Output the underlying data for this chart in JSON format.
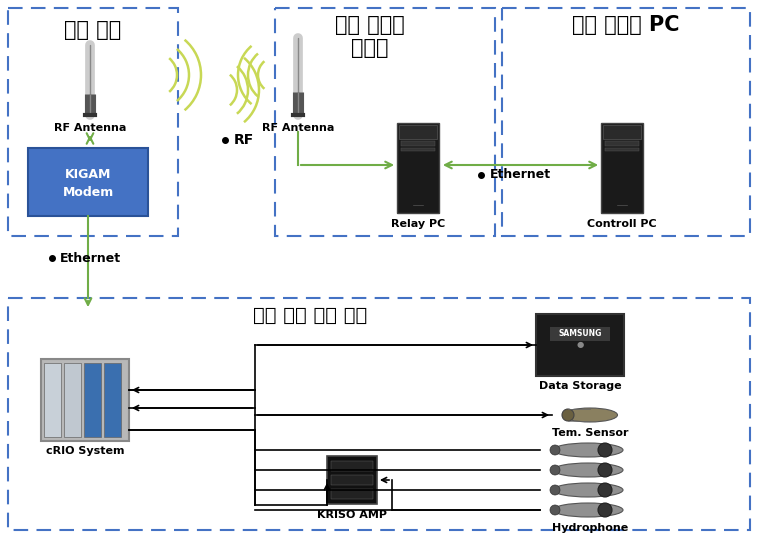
{
  "bg_color": "#ffffff",
  "dash_color": "#4472c4",
  "arrow_green": "#70ad47",
  "modem_fill": "#4472c4",
  "modem_edge": "#2a5298",
  "pc_fill": "#111111",
  "pc_edge": "#333333",
  "wifi_color": "#c8d855",
  "labels": {
    "box1_title": "수상 부표",
    "box2_title1": "육상 릴레이",
    "box2_title2": "시스템",
    "box3_title": "원격 컨트롤 PC",
    "box4_title": "수중 음파 계측 모듈",
    "rf_antenna1": "RF Antenna",
    "kigam_modem": "KIGAM\nModem",
    "rf_label": "RF",
    "rf_antenna2": "RF Antenna",
    "relay_pc": "Relay PC",
    "controll_pc": "Controll PC",
    "ethernet_top": "Ethernet",
    "ethernet_mid": "Ethernet",
    "crio": "cRIO System",
    "data_storage": "Data Storage",
    "tem_sensor": "Tem. Sensor",
    "hydrophone": "Hydrophone",
    "kriso_amp": "KRISO AMP"
  }
}
